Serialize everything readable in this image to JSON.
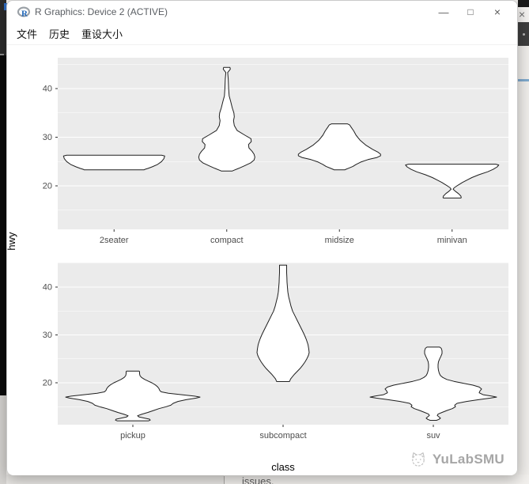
{
  "window": {
    "title": "R Graphics: Device 2 (ACTIVE)",
    "icon": "r-logo",
    "menu": [
      "文件",
      "历史",
      "重设大小"
    ],
    "controls": {
      "minimize": "—",
      "maximize": "□",
      "close": "×"
    }
  },
  "background": {
    "partial_close": "×",
    "snippet": "issues.",
    "watermark": "YuLabSMU"
  },
  "chart_data": {
    "type": "violin",
    "title": "",
    "xlabel": "class",
    "ylabel": "hwy",
    "y_major_ticks": [
      20,
      30,
      40
    ],
    "y_minor_ticks": [
      15,
      25,
      35,
      45
    ],
    "ylim": [
      11,
      46.3
    ],
    "grid": true,
    "colors": {
      "panel": "#EBEBEB",
      "grid": "#FFFFFF",
      "outline": "#1F1F1F",
      "violin_fill": "#FFFFFF",
      "tick": "#333333",
      "axis_text": "#4D4D4D",
      "axis_title": "#000000"
    },
    "facets": [
      {
        "categories": [
          "2seater",
          "compact",
          "midsize",
          "minivan"
        ]
      },
      {
        "categories": [
          "pickup",
          "subcompact",
          "suv"
        ]
      }
    ],
    "violins": [
      {
        "facet": 0,
        "category": "2seater",
        "hwy_range": [
          23,
          26.4
        ],
        "profile": [
          [
            26.3,
            60
          ],
          [
            26.15,
            64
          ],
          [
            25.6,
            63
          ],
          [
            25.0,
            60
          ],
          [
            24.4,
            55
          ],
          [
            23.9,
            48
          ],
          [
            23.6,
            43
          ],
          [
            23.4,
            39
          ],
          [
            23.3,
            38
          ]
        ]
      },
      {
        "facet": 0,
        "category": "compact",
        "hwy_range": [
          23,
          44.4
        ],
        "profile": [
          [
            44.35,
            4
          ],
          [
            44.0,
            4.5
          ],
          [
            43.3,
            1.2
          ],
          [
            42.0,
            1.8
          ],
          [
            40.0,
            2.4
          ],
          [
            38.5,
            3
          ],
          [
            37.3,
            5
          ],
          [
            36.0,
            7
          ],
          [
            35.0,
            9
          ],
          [
            34.2,
            9.5
          ],
          [
            33.4,
            8.5
          ],
          [
            32.4,
            9.5
          ],
          [
            31.4,
            13
          ],
          [
            30.4,
            23
          ],
          [
            29.7,
            30.5
          ],
          [
            29.1,
            31
          ],
          [
            28.5,
            27.5
          ],
          [
            27.8,
            28
          ],
          [
            27.1,
            32
          ],
          [
            26.5,
            34.5
          ],
          [
            25.9,
            35.5
          ],
          [
            25.3,
            34.5
          ],
          [
            24.7,
            30
          ],
          [
            24.1,
            22
          ],
          [
            23.6,
            15
          ],
          [
            23.2,
            9
          ],
          [
            23.05,
            7
          ]
        ]
      },
      {
        "facet": 0,
        "category": "midsize",
        "hwy_range": [
          23.3,
          32.8
        ],
        "profile": [
          [
            32.75,
            10
          ],
          [
            32.5,
            13
          ],
          [
            32.0,
            15
          ],
          [
            31.3,
            18
          ],
          [
            30.4,
            21
          ],
          [
            29.4,
            26
          ],
          [
            28.4,
            33
          ],
          [
            27.5,
            42
          ],
          [
            26.9,
            49
          ],
          [
            26.5,
            52
          ],
          [
            26.2,
            52
          ],
          [
            25.8,
            47
          ],
          [
            25.4,
            36
          ],
          [
            24.9,
            27
          ],
          [
            24.4,
            21
          ],
          [
            24.0,
            17
          ],
          [
            23.6,
            11
          ],
          [
            23.4,
            8
          ],
          [
            23.3,
            7
          ]
        ]
      },
      {
        "facet": 0,
        "category": "minivan",
        "hwy_range": [
          17.5,
          24.5
        ],
        "profile": [
          [
            24.45,
            55
          ],
          [
            24.3,
            59
          ],
          [
            23.9,
            57
          ],
          [
            23.4,
            52
          ],
          [
            22.9,
            45
          ],
          [
            22.3,
            34
          ],
          [
            21.7,
            25
          ],
          [
            21.2,
            19
          ],
          [
            20.7,
            13
          ],
          [
            20.1,
            7
          ],
          [
            19.6,
            2.5
          ],
          [
            19.3,
            1.2
          ],
          [
            18.9,
            4
          ],
          [
            18.4,
            8
          ],
          [
            17.9,
            11
          ],
          [
            17.6,
            11.5
          ],
          [
            17.5,
            11
          ]
        ]
      },
      {
        "facet": 1,
        "category": "pickup",
        "hwy_range": [
          12,
          22.5
        ],
        "profile": [
          [
            22.45,
            8
          ],
          [
            22.3,
            8.5
          ],
          [
            21.9,
            8.5
          ],
          [
            21.5,
            9
          ],
          [
            21.1,
            11
          ],
          [
            20.7,
            15
          ],
          [
            20.3,
            20
          ],
          [
            20.0,
            24
          ],
          [
            19.6,
            28
          ],
          [
            19.2,
            31
          ],
          [
            18.8,
            33
          ],
          [
            18.4,
            34
          ],
          [
            18.1,
            36
          ],
          [
            17.8,
            45
          ],
          [
            17.5,
            62
          ],
          [
            17.2,
            78
          ],
          [
            17.0,
            85
          ],
          [
            16.8,
            80
          ],
          [
            16.5,
            68
          ],
          [
            16.1,
            57
          ],
          [
            15.7,
            51
          ],
          [
            15.3,
            48
          ],
          [
            15.0,
            42
          ],
          [
            14.6,
            33
          ],
          [
            14.2,
            26
          ],
          [
            13.8,
            19
          ],
          [
            13.4,
            11
          ],
          [
            13.1,
            6
          ],
          [
            12.85,
            8
          ],
          [
            12.6,
            15
          ],
          [
            12.4,
            21
          ],
          [
            12.2,
            22
          ],
          [
            12.05,
            20
          ]
        ]
      },
      {
        "facet": 1,
        "category": "subcompact",
        "hwy_range": [
          20.2,
          44.6
        ],
        "profile": [
          [
            44.6,
            4.5
          ],
          [
            44.0,
            4.5
          ],
          [
            43.0,
            4.5
          ],
          [
            42.0,
            4.8
          ],
          [
            41.0,
            5
          ],
          [
            40.0,
            5.5
          ],
          [
            39.0,
            6
          ],
          [
            38.0,
            7
          ],
          [
            37.0,
            8.5
          ],
          [
            36.0,
            10
          ],
          [
            35.0,
            12
          ],
          [
            34.0,
            15
          ],
          [
            33.0,
            18
          ],
          [
            32.0,
            21
          ],
          [
            31.0,
            24
          ],
          [
            30.0,
            27
          ],
          [
            29.0,
            29.5
          ],
          [
            28.0,
            31.5
          ],
          [
            27.0,
            32.5
          ],
          [
            26.3,
            33
          ],
          [
            25.7,
            32
          ],
          [
            25.0,
            30
          ],
          [
            24.3,
            27.5
          ],
          [
            23.6,
            24.5
          ],
          [
            23.0,
            21.5
          ],
          [
            22.4,
            18
          ],
          [
            21.8,
            14.5
          ],
          [
            21.3,
            12
          ],
          [
            20.8,
            9.5
          ],
          [
            20.4,
            8.5
          ],
          [
            20.25,
            8
          ]
        ]
      },
      {
        "facet": 1,
        "category": "suv",
        "hwy_range": [
          12.1,
          27.5
        ],
        "profile": [
          [
            27.45,
            8
          ],
          [
            27.2,
            10
          ],
          [
            26.7,
            11
          ],
          [
            26.1,
            11
          ],
          [
            25.5,
            9.5
          ],
          [
            25.0,
            8
          ],
          [
            24.4,
            6.5
          ],
          [
            23.8,
            6
          ],
          [
            23.2,
            6
          ],
          [
            22.6,
            6.5
          ],
          [
            22.0,
            7.5
          ],
          [
            21.5,
            9
          ],
          [
            21.1,
            12
          ],
          [
            20.7,
            17
          ],
          [
            20.3,
            26
          ],
          [
            19.9,
            38
          ],
          [
            19.5,
            50
          ],
          [
            19.1,
            58
          ],
          [
            18.7,
            61
          ],
          [
            18.3,
            59
          ],
          [
            17.9,
            58
          ],
          [
            17.5,
            63
          ],
          [
            17.2,
            74
          ],
          [
            17.0,
            80
          ],
          [
            16.8,
            72
          ],
          [
            16.5,
            58
          ],
          [
            16.1,
            42
          ],
          [
            15.7,
            30
          ],
          [
            15.3,
            27
          ],
          [
            15.0,
            28
          ],
          [
            14.6,
            24
          ],
          [
            14.2,
            17
          ],
          [
            13.8,
            11
          ],
          [
            13.45,
            6
          ],
          [
            13.15,
            5
          ],
          [
            12.9,
            7
          ],
          [
            12.6,
            9
          ],
          [
            12.35,
            7
          ],
          [
            12.15,
            4
          ]
        ]
      }
    ]
  }
}
